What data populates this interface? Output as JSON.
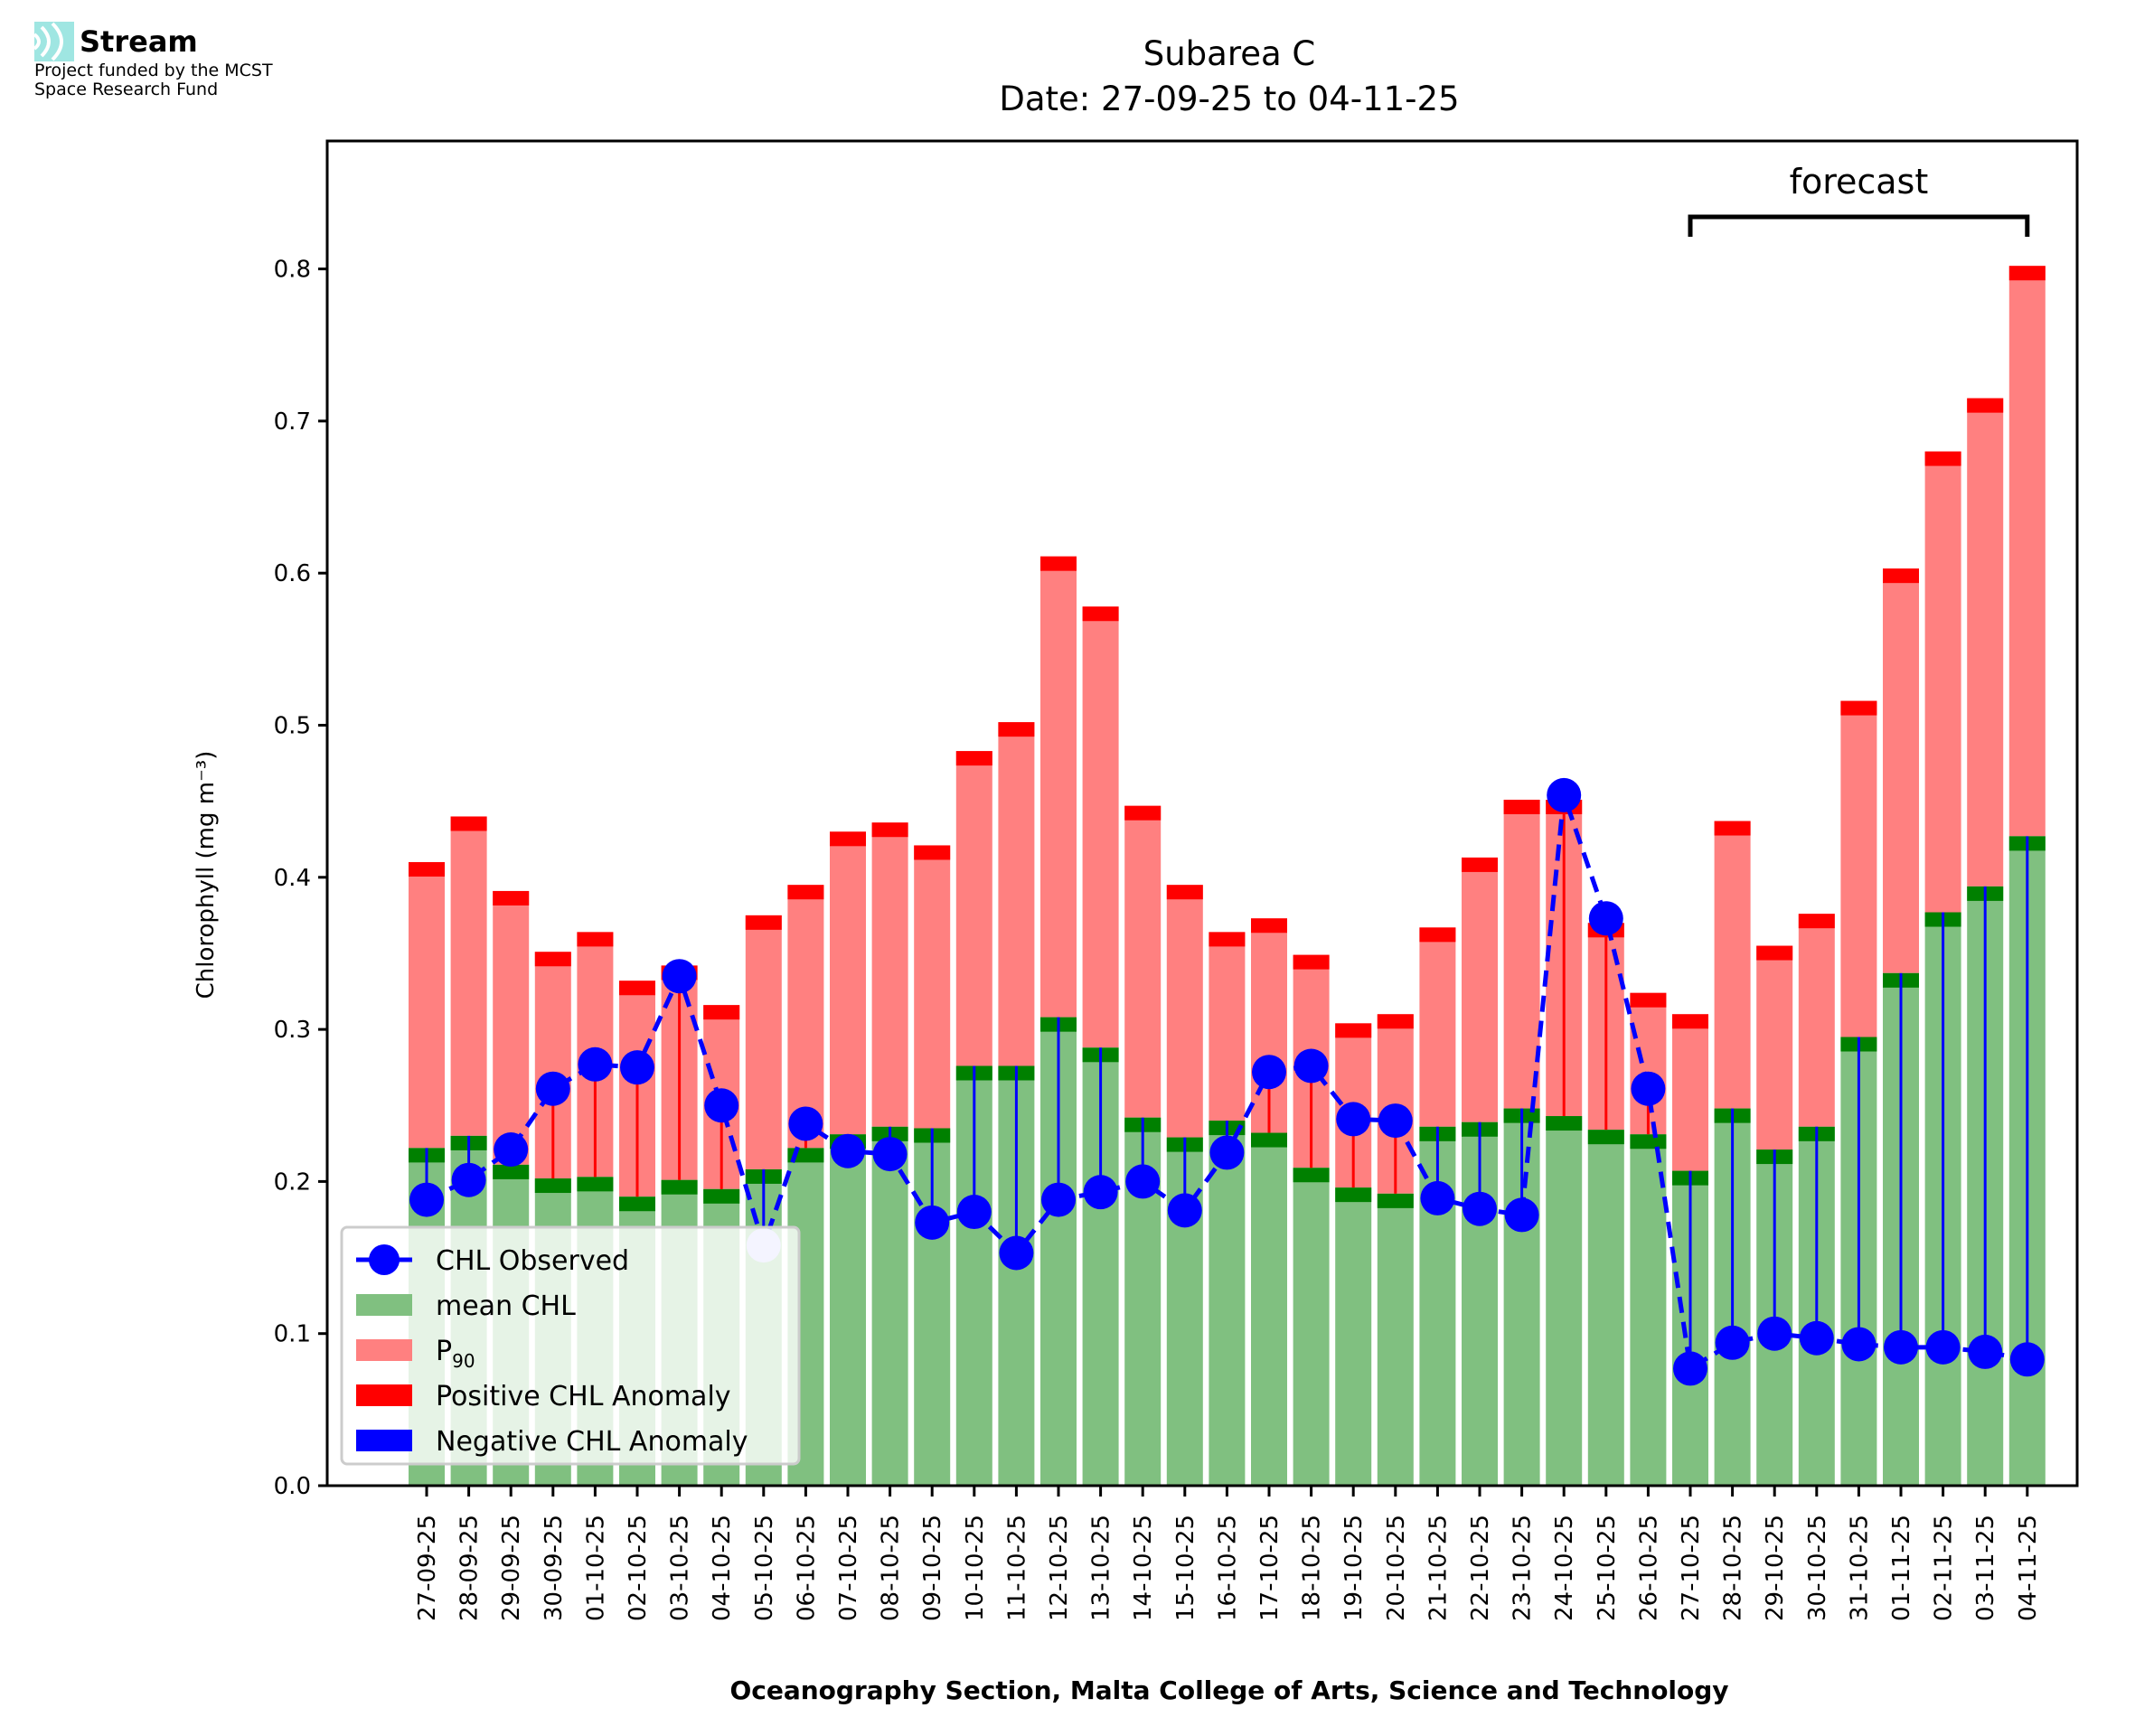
{
  "logo": {
    "icon": "stream-waves-icon",
    "name": "Stream",
    "line1": "Project funded by the MCST",
    "line2": "Space Research Fund",
    "icon_color": "#7fdcd8"
  },
  "colors": {
    "mean": "#80c080",
    "mean_cap": "#008000",
    "p90": "#ff8080",
    "p90_cap": "#ff0000",
    "observed": "#0000ff",
    "positive": "#ff0000",
    "negative": "#0000ff"
  },
  "chart_data": {
    "type": "bar",
    "title": "Subarea C",
    "subtitle": "Date: 27-09-25 to 04-11-25",
    "xlabel": "Oceanography Section, Malta College of Arts, Science and Technology",
    "ylabel": "Chlorophyll (mg m⁻³)",
    "ylim": [
      0,
      0.88
    ],
    "yticks": [
      0.0,
      0.1,
      0.2,
      0.3,
      0.4,
      0.5,
      0.6,
      0.7,
      0.8
    ],
    "ytick_labels": [
      "0.0",
      "0.1",
      "0.2",
      "0.3",
      "0.4",
      "0.5",
      "0.6",
      "0.7",
      "0.8"
    ],
    "grid": false,
    "legend_position": "lower-left",
    "categories": [
      "27-09-25",
      "28-09-25",
      "29-09-25",
      "30-09-25",
      "01-10-25",
      "02-10-25",
      "03-10-25",
      "04-10-25",
      "05-10-25",
      "06-10-25",
      "07-10-25",
      "08-10-25",
      "09-10-25",
      "10-10-25",
      "11-10-25",
      "12-10-25",
      "13-10-25",
      "14-10-25",
      "15-10-25",
      "16-10-25",
      "17-10-25",
      "18-10-25",
      "19-10-25",
      "20-10-25",
      "21-10-25",
      "22-10-25",
      "23-10-25",
      "24-10-25",
      "25-10-25",
      "26-10-25",
      "27-10-25",
      "28-10-25",
      "29-10-25",
      "30-10-25",
      "31-10-25",
      "01-11-25",
      "02-11-25",
      "03-11-25",
      "04-11-25"
    ],
    "series": [
      {
        "name": "mean CHL",
        "type": "bar",
        "values": [
          0.222,
          0.23,
          0.211,
          0.202,
          0.203,
          0.19,
          0.201,
          0.195,
          0.208,
          0.222,
          0.231,
          0.236,
          0.235,
          0.276,
          0.276,
          0.308,
          0.288,
          0.242,
          0.229,
          0.24,
          0.232,
          0.209,
          0.196,
          0.192,
          0.236,
          0.239,
          0.248,
          0.243,
          0.234,
          0.231,
          0.207,
          0.248,
          0.221,
          0.236,
          0.295,
          0.337,
          0.377,
          0.394,
          0.427
        ]
      },
      {
        "name": "P90",
        "type": "bar",
        "values": [
          0.41,
          0.44,
          0.391,
          0.351,
          0.364,
          0.332,
          0.342,
          0.316,
          0.375,
          0.395,
          0.43,
          0.436,
          0.421,
          0.483,
          0.502,
          0.611,
          0.578,
          0.447,
          0.395,
          0.364,
          0.373,
          0.349,
          0.304,
          0.31,
          0.367,
          0.413,
          0.451,
          0.451,
          0.37,
          0.324,
          0.31,
          0.437,
          0.355,
          0.376,
          0.516,
          0.603,
          0.68,
          0.715,
          0.802
        ]
      },
      {
        "name": "CHL Observed",
        "type": "line",
        "values": [
          0.188,
          0.201,
          0.221,
          0.261,
          0.277,
          0.275,
          0.335,
          0.25,
          0.158,
          0.238,
          0.22,
          0.218,
          0.173,
          0.18,
          0.153,
          0.188,
          0.193,
          0.2,
          0.181,
          0.219,
          0.272,
          0.276,
          0.241,
          0.24,
          0.189,
          0.182,
          0.178,
          0.454,
          0.373,
          0.261,
          0.077,
          0.094,
          0.1,
          0.097,
          0.093,
          0.091,
          0.091,
          0.088,
          0.083
        ]
      }
    ],
    "highlighted_points": [
      8
    ],
    "annotations": [
      {
        "text": "forecast",
        "from": "27-10-25",
        "to": "04-11-25"
      }
    ],
    "legend": [
      {
        "label": "CHL Observed",
        "kind": "line-marker"
      },
      {
        "label": "mean CHL",
        "kind": "patch-mean"
      },
      {
        "label": "P",
        "sub": "90",
        "kind": "patch-p90"
      },
      {
        "label": "Positive CHL Anomaly",
        "kind": "patch-positive"
      },
      {
        "label": "Negative CHL Anomaly",
        "kind": "patch-negative"
      }
    ]
  }
}
